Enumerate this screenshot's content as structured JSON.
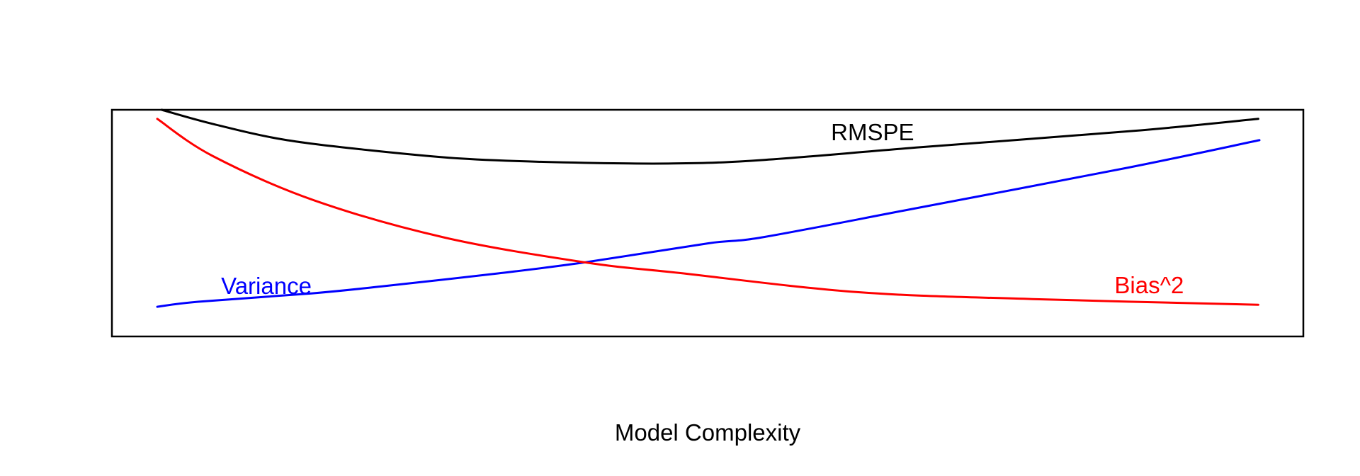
{
  "chart_data": {
    "type": "line",
    "title": "",
    "xlabel": "Model Complexity",
    "ylabel": "",
    "background": "#FFFFFF",
    "frame_color": "#000000",
    "frame": "full box, no axis ticks, no tick labels",
    "legend": "none (curves labeled inline with matching colors)",
    "x_range": [
      0,
      1
    ],
    "y_range": [
      0,
      1
    ],
    "series": [
      {
        "name": "RMSPE",
        "color": "#000000",
        "shape": "U-shaped: starts at top-left clipped by frame, dips to minimum near mid-plot, rises toward top-right",
        "points": [
          [
            0.004,
            1.0
          ],
          [
            0.05,
            0.938
          ],
          [
            0.114,
            0.869
          ],
          [
            0.192,
            0.822
          ],
          [
            0.275,
            0.785
          ],
          [
            0.359,
            0.769
          ],
          [
            0.468,
            0.763
          ],
          [
            0.551,
            0.779
          ],
          [
            0.693,
            0.835
          ],
          [
            0.886,
            0.907
          ],
          [
            0.999,
            0.96
          ]
        ]
      },
      {
        "name": "Variance",
        "color": "#0000FF",
        "shape": "monotonically increasing, convex (accelerating upward left to right)",
        "points": [
          [
            0.0,
            0.131
          ],
          [
            0.037,
            0.153
          ],
          [
            0.14,
            0.19
          ],
          [
            0.204,
            0.221
          ],
          [
            0.307,
            0.277
          ],
          [
            0.388,
            0.327
          ],
          [
            0.5,
            0.411
          ],
          [
            0.551,
            0.439
          ],
          [
            0.693,
            0.57
          ],
          [
            0.881,
            0.745
          ],
          [
            1.0,
            0.866
          ]
        ]
      },
      {
        "name": "Bias^2",
        "color": "#FF0000",
        "shape": "monotonically decreasing, convex (steep at left, flattening to the right)",
        "points": [
          [
            0.0,
            0.96
          ],
          [
            0.05,
            0.797
          ],
          [
            0.142,
            0.601
          ],
          [
            0.261,
            0.436
          ],
          [
            0.388,
            0.327
          ],
          [
            0.474,
            0.28
          ],
          [
            0.634,
            0.196
          ],
          [
            0.794,
            0.165
          ],
          [
            0.999,
            0.14
          ]
        ]
      }
    ],
    "annotations": [
      {
        "text": "RMSPE",
        "color": "#000000",
        "x": 0.649,
        "y": 0.9
      },
      {
        "text": "Variance",
        "color": "#0000FF",
        "x": 0.099,
        "y": 0.221
      },
      {
        "text": "Bias^2",
        "color": "#FF0000",
        "x": 0.9,
        "y": 0.224
      }
    ],
    "notable_points": {
      "bias_variance_crossing": {
        "x": 0.388,
        "y": 0.327
      },
      "rmspe_minimum": {
        "x": 0.468,
        "y": 0.763
      }
    }
  }
}
